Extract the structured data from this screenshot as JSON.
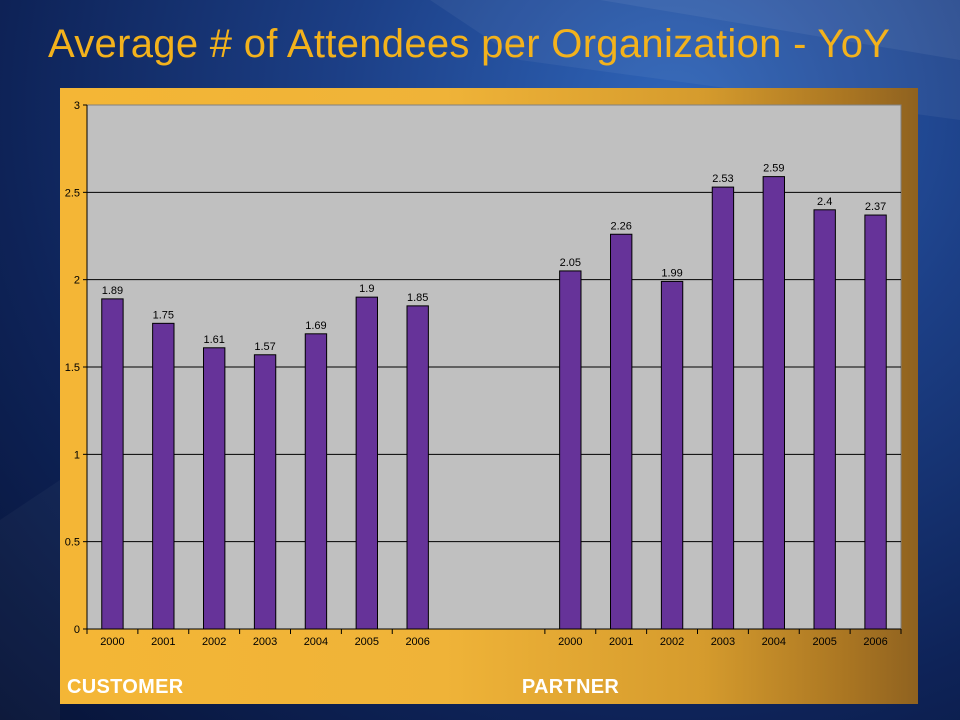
{
  "slide": {
    "title": "Average # of Attendees per Organization - YoY",
    "title_color": "#F3B21C"
  },
  "chart_data": {
    "type": "bar",
    "title": "",
    "xlabel": "",
    "ylabel": "",
    "ylim": [
      0,
      3
    ],
    "yticks": [
      "0",
      "0.5",
      "1",
      "1.5",
      "2",
      "2.5",
      "3"
    ],
    "grid": true,
    "bar_color": "#663399",
    "plot_bg": "#C0C0C0",
    "groups": [
      {
        "name": "CUSTOMER",
        "categories": [
          "2000",
          "2001",
          "2002",
          "2003",
          "2004",
          "2005",
          "2006"
        ],
        "values": [
          1.89,
          1.75,
          1.61,
          1.57,
          1.69,
          1.9,
          1.85
        ],
        "labels": [
          "1.89",
          "1.75",
          "1.61",
          "1.57",
          "1.69",
          "1.9",
          "1.85"
        ]
      },
      {
        "name": "PARTNER",
        "categories": [
          "2000",
          "2001",
          "2002",
          "2003",
          "2004",
          "2005",
          "2006"
        ],
        "values": [
          2.05,
          2.26,
          1.99,
          2.53,
          2.59,
          2.4,
          2.37
        ],
        "labels": [
          "2.05",
          "2.26",
          "1.99",
          "2.53",
          "2.59",
          "2.4",
          "2.37"
        ]
      }
    ]
  }
}
